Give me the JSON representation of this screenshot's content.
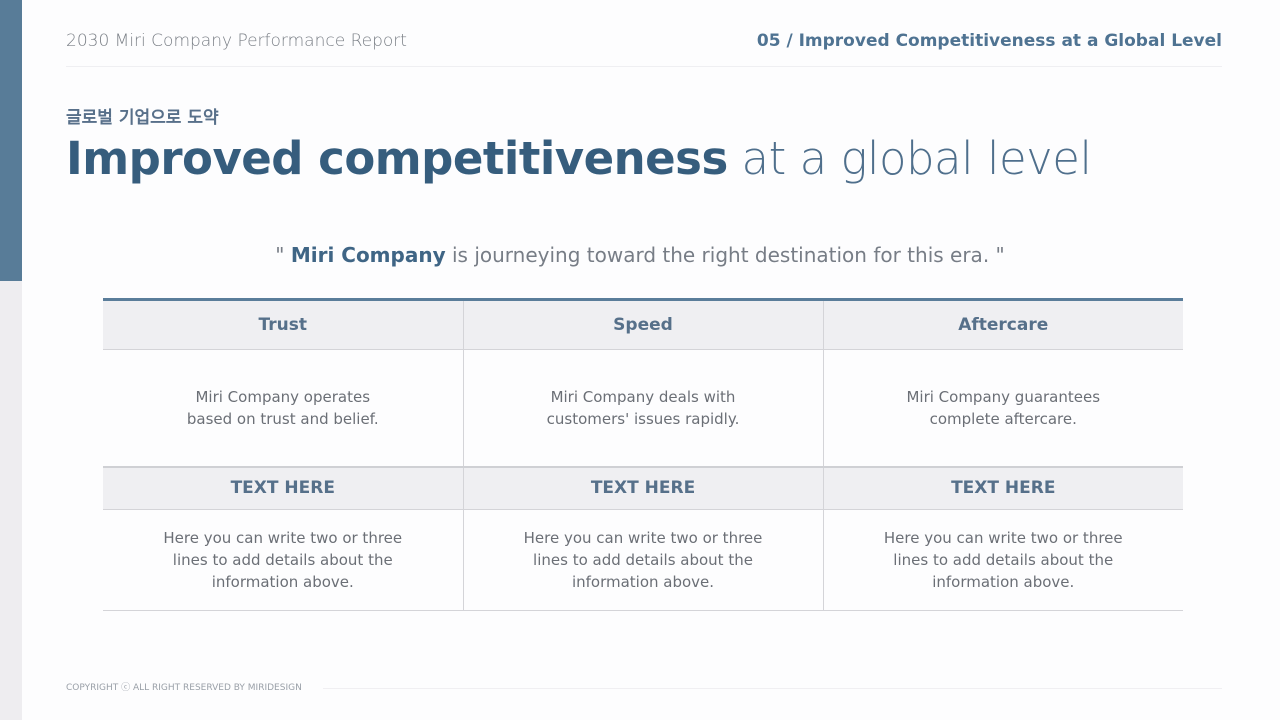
{
  "header": {
    "report_title": "2030 Miri Company Performance Report",
    "section": "05 / Improved Competitiveness at a Global Level"
  },
  "subtitle_kr": "글로벌 기업으로  도약",
  "title": {
    "bold": "Improved competitiveness",
    "light": " at a global level"
  },
  "quote": {
    "open": "\" ",
    "company": "Miri Company",
    "rest": " is journeying toward the right destination for this era. \""
  },
  "table": {
    "headers": [
      "Trust",
      "Speed",
      "Aftercare"
    ],
    "descriptions": [
      [
        "Miri Company operates",
        "based on trust and belief."
      ],
      [
        "Miri Company deals with",
        "customers' issues rapidly."
      ],
      [
        "Miri Company guarantees",
        "complete aftercare."
      ]
    ],
    "sub_headers": [
      "TEXT HERE",
      "TEXT HERE",
      "TEXT HERE"
    ],
    "details": [
      [
        "Here you can write two or three",
        "lines to add details about the",
        "information above."
      ],
      [
        "Here you can write two or three",
        "lines to add details about the",
        "information above."
      ],
      [
        "Here you can write two or three",
        "lines to add details about the",
        "information above."
      ]
    ]
  },
  "footer": {
    "copyright": "COPYRIGHT ⓒ ALL RIGHT RESERVED BY MIRIDESIGN"
  },
  "colors": {
    "accent": "#587c98",
    "title": "#365d7d"
  }
}
